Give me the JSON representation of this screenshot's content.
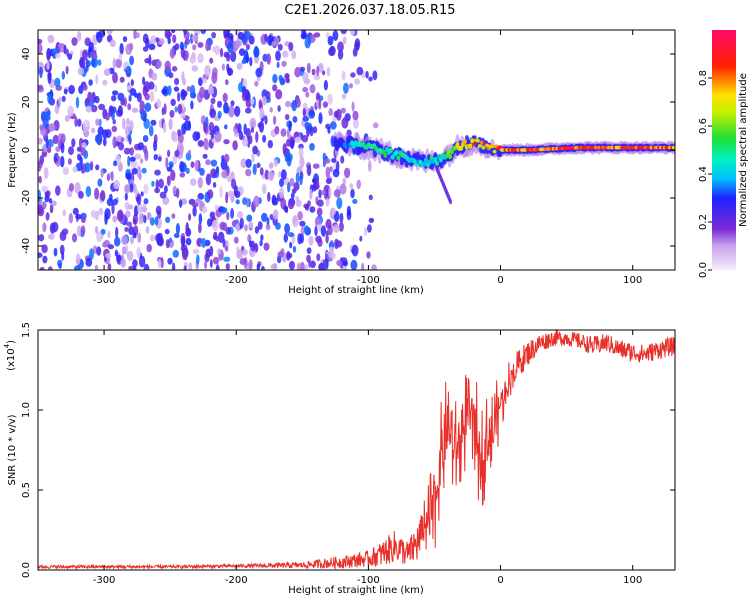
{
  "title": "C2E1.2026.037.18.05.R15",
  "colors": {
    "snr_line": "#e8302a",
    "axis": "#000000",
    "low_amp_purple": "#7b2bd6",
    "high_amp_red": "#ff0000"
  },
  "chart_data": [
    {
      "type": "heatmap",
      "name": "spectrogram",
      "xlabel": "Height of straight line (km)",
      "ylabel": "Frequency (Hz)",
      "xlim": [
        -350,
        132
      ],
      "ylim": [
        -50,
        50
      ],
      "xticks": [
        -300,
        -200,
        -100,
        0,
        100
      ],
      "xtick_labels": [
        "-300",
        "-200",
        "-100",
        "0",
        "100"
      ],
      "yticks": [
        -40,
        -20,
        0,
        20,
        40
      ],
      "ytick_labels": [
        "-40",
        "-20",
        "0",
        "20",
        "40"
      ],
      "colorbar": {
        "label": "Normalized spectral amplitude",
        "range": [
          0,
          1
        ],
        "ticks": [
          0.0,
          0.2,
          0.4,
          0.6,
          0.8
        ],
        "tick_labels": [
          "0.0",
          "0.2",
          "0.4",
          "0.6",
          "0.8"
        ],
        "colormap": "rainbow (purple-blue-cyan-green-yellow-red-magenta)"
      },
      "noise_region": {
        "x_range": [
          -350,
          -110
        ],
        "y_range": [
          -50,
          50
        ],
        "amplitude_range": [
          0.05,
          0.35
        ]
      },
      "signal_track": {
        "description": "bright carrier near 0 Hz emerging after about -125 km",
        "points": [
          {
            "x": -125,
            "freq": 3,
            "amp": 0.3
          },
          {
            "x": -100,
            "freq": 1,
            "amp": 0.55
          },
          {
            "x": -80,
            "freq": -2,
            "amp": 0.5
          },
          {
            "x": -60,
            "freq": -5,
            "amp": 0.45
          },
          {
            "x": -45,
            "freq": -4,
            "amp": 0.5
          },
          {
            "x": -30,
            "freq": 2,
            "amp": 0.75
          },
          {
            "x": -20,
            "freq": 3,
            "amp": 0.8
          },
          {
            "x": -5,
            "freq": 0,
            "amp": 0.85
          },
          {
            "x": 20,
            "freq": 0,
            "amp": 0.9
          },
          {
            "x": 60,
            "freq": 1,
            "amp": 0.95
          },
          {
            "x": 100,
            "freq": 1,
            "amp": 0.95
          },
          {
            "x": 132,
            "freq": 1,
            "amp": 0.9
          }
        ]
      },
      "grid": false
    },
    {
      "type": "line",
      "name": "snr",
      "xlabel": "Height of straight line (km)",
      "ylabel": "SNR (10 * v/v)",
      "y_multiplier_label": "(x10",
      "y_multiplier_exponent": "4",
      "y_multiplier_suffix": ")",
      "xlim": [
        -350,
        132
      ],
      "ylim": [
        0,
        1.5
      ],
      "xticks": [
        -300,
        -200,
        -100,
        0,
        100
      ],
      "xtick_labels": [
        "-300",
        "-200",
        "-100",
        "0",
        "100"
      ],
      "yticks": [
        0.0,
        0.5,
        1.0,
        1.5
      ],
      "ytick_labels": [
        "0.0",
        "0.5",
        "1.0",
        "1.5"
      ],
      "series": [
        {
          "color": "#e8302a",
          "x": [
            -350,
            -300,
            -250,
            -200,
            -150,
            -120,
            -100,
            -90,
            -80,
            -70,
            -60,
            -55,
            -50,
            -45,
            -40,
            -35,
            -30,
            -25,
            -20,
            -15,
            -10,
            -5,
            0,
            10,
            20,
            30,
            40,
            50,
            60,
            70,
            80,
            90,
            100,
            110,
            120,
            132
          ],
          "y": [
            0.02,
            0.02,
            0.02,
            0.025,
            0.03,
            0.05,
            0.07,
            0.1,
            0.15,
            0.1,
            0.2,
            0.3,
            0.4,
            0.7,
            0.9,
            0.75,
            0.8,
            1.0,
            0.9,
            0.7,
            0.8,
            0.9,
            1.05,
            1.25,
            1.35,
            1.42,
            1.45,
            1.45,
            1.43,
            1.4,
            1.42,
            1.38,
            1.36,
            1.35,
            1.38,
            1.4
          ],
          "noise_amplitude": [
            0.01,
            0.01,
            0.01,
            0.01,
            0.02,
            0.04,
            0.05,
            0.08,
            0.1,
            0.08,
            0.15,
            0.25,
            0.3,
            0.35,
            0.35,
            0.3,
            0.35,
            0.3,
            0.35,
            0.35,
            0.3,
            0.3,
            0.2,
            0.1,
            0.08,
            0.06,
            0.05,
            0.05,
            0.05,
            0.06,
            0.06,
            0.06,
            0.06,
            0.06,
            0.06,
            0.06
          ]
        }
      ],
      "grid": false
    }
  ]
}
